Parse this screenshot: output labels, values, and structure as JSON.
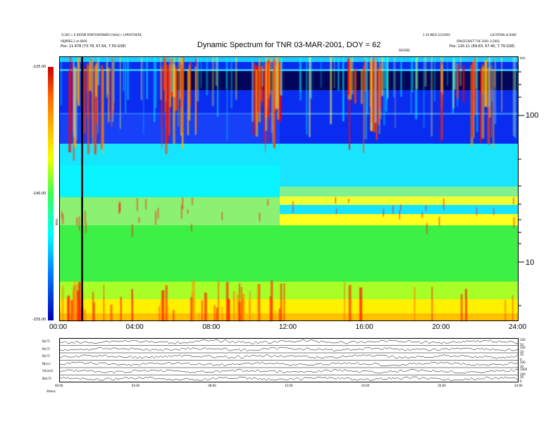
{
  "header": {
    "left_line1": "-0.200 > 0 [DOSM PONTOSPOWER] (Volts) / LAPOSTHERE",
    "left_line2": "ARJPRES 2 at 6000",
    "left_line3": "Pos:   11.478 (73.78, 67.64, 7.59 GSE)",
    "right_line1": "1-10 WED 2/2/2001",
    "right_line1b": "LOCATION at 6000",
    "right_line2": "SPACECRAFT TVE 2001 3:2002",
    "right_line3": "Pos:   120.11 (69.83, 67.40, 7.79 GSE)",
    "small_label": "SEVOSE",
    "corner_label": "kHz"
  },
  "chart_data": [
    {
      "type": "heatmap",
      "title": "Dynamic Spectrum for TNR 03-MAR-2001, DOY = 62",
      "xlabel": "",
      "ylabel": "",
      "x_ticks": [
        "00:00",
        "04:00",
        "08:00",
        "12:00",
        "16:00",
        "20:00",
        "24:00"
      ],
      "x_range_hours": [
        0,
        24
      ],
      "y_scale": "log",
      "y_ticks_right": [
        {
          "label": "100",
          "value": 100
        },
        {
          "label": "10",
          "value": 10
        }
      ],
      "colorbar": {
        "ticks": [
          {
            "label": "-125.00",
            "value": -125
          },
          {
            "label": "-140.00",
            "value": -140
          },
          {
            "label": "-155.00",
            "value": -155
          }
        ],
        "label": "Volts"
      },
      "vertical_marker_hours": 1.2
    },
    {
      "type": "line",
      "panels": [
        {
          "label": "B(nT)",
          "right_ticks": [
            "100",
            "50"
          ]
        },
        {
          "label": "B(nT)",
          "right_ticks": [
            "100",
            "10"
          ]
        },
        {
          "label": "B(nT)",
          "right_ticks": [
            "10",
            "0"
          ]
        },
        {
          "label": "N(/cc)",
          "right_ticks": [
            "100",
            "10"
          ]
        },
        {
          "label": "V(km/s)",
          "right_ticks": [
            "1000",
            "100"
          ]
        },
        {
          "label": "Bz(nT)",
          "right_ticks": [
            "20",
            "0"
          ]
        }
      ],
      "x_ticks": [
        "00:00",
        "04:00",
        "08:00",
        "12:00",
        "16:00",
        "20:00",
        "24:00"
      ],
      "footer_label": "Status"
    }
  ]
}
